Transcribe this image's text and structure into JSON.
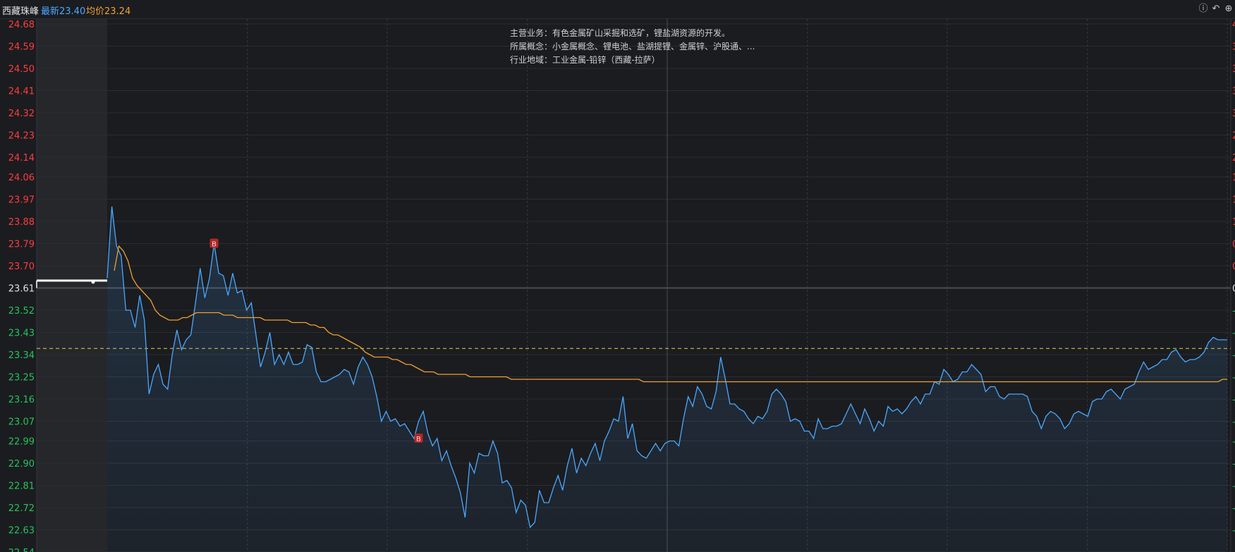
{
  "header": {
    "stock_name": "西藏珠峰",
    "latest_label": "最新23.40",
    "avg_label": "均价23.24",
    "icons": [
      "info-circle-icon",
      "undo-icon",
      "add-icon"
    ]
  },
  "info_panel": {
    "main_business": "主营业务：有色金属矿山采掘和选矿，锂盐湖资源的开发。",
    "concepts": "所属概念：小金属概念、锂电池、盐湖提锂、金属锌、沪股通、...",
    "industry": "行业地域：工业金属-铅锌（西藏-拉萨）"
  },
  "chart_data": {
    "type": "line",
    "title": "",
    "y_ticks_upper": [
      "24.68",
      "24.59",
      "24.50",
      "24.41",
      "24.32",
      "24.23",
      "24.14",
      "24.06",
      "23.97",
      "23.88",
      "23.79",
      "23.70"
    ],
    "y_tick_mid": "23.61",
    "y_ticks_lower": [
      "23.52",
      "23.43",
      "23.34",
      "23.25",
      "23.16",
      "23.07",
      "22.99",
      "22.90",
      "22.81",
      "22.72",
      "22.63",
      "22.54"
    ],
    "ylim": [
      22.54,
      24.68
    ],
    "prev_close": 23.61,
    "reference_line": 23.365,
    "colors": {
      "up": "#ff3c3c",
      "down": "#24c45c",
      "flat": "#e0e0e0",
      "price": "#4aa8ff",
      "avg": "#f0a030",
      "ref": "#e6d23c",
      "marker": "#b02828"
    },
    "pre_market": [
      23.64,
      23.64,
      23.64,
      23.64,
      23.64,
      23.64,
      23.64,
      23.64,
      23.64,
      23.64
    ],
    "price": [
      23.65,
      23.94,
      23.78,
      23.74,
      23.52,
      23.52,
      23.45,
      23.58,
      23.48,
      23.18,
      23.26,
      23.3,
      23.22,
      23.2,
      23.34,
      23.44,
      23.36,
      23.4,
      23.42,
      23.55,
      23.69,
      23.57,
      23.65,
      23.79,
      23.67,
      23.66,
      23.58,
      23.67,
      23.59,
      23.6,
      23.52,
      23.55,
      23.42,
      23.29,
      23.35,
      23.43,
      23.3,
      23.34,
      23.3,
      23.35,
      23.3,
      23.3,
      23.31,
      23.38,
      23.37,
      23.27,
      23.23,
      23.23,
      23.24,
      23.25,
      23.26,
      23.28,
      23.27,
      23.22,
      23.29,
      23.33,
      23.3,
      23.25,
      23.17,
      23.07,
      23.11,
      23.07,
      23.08,
      23.05,
      23.06,
      23.03,
      23.0,
      23.07,
      23.11,
      23.02,
      22.97,
      23.0,
      22.91,
      22.95,
      22.89,
      22.84,
      22.78,
      22.68,
      22.9,
      22.86,
      22.94,
      22.93,
      22.93,
      22.99,
      22.94,
      22.82,
      22.83,
      22.8,
      22.7,
      22.75,
      22.73,
      22.64,
      22.66,
      22.79,
      22.74,
      22.74,
      22.8,
      22.85,
      22.79,
      22.89,
      22.96,
      22.86,
      22.92,
      22.89,
      22.94,
      22.98,
      22.91,
      22.99,
      23.03,
      23.08,
      23.07,
      23.17,
      23.0,
      23.06,
      22.95,
      22.93,
      22.92,
      22.95,
      22.98,
      22.95,
      22.98,
      22.99,
      22.99,
      22.97,
      23.08,
      23.17,
      23.13,
      23.21,
      23.18,
      23.13,
      23.12,
      23.19,
      23.33,
      23.24,
      23.14,
      23.14,
      23.12,
      23.11,
      23.08,
      23.06,
      23.09,
      23.08,
      23.11,
      23.18,
      23.2,
      23.18,
      23.15,
      23.07,
      23.08,
      23.07,
      23.03,
      23.03,
      23.0,
      23.08,
      23.04,
      23.04,
      23.05,
      23.05,
      23.06,
      23.1,
      23.14,
      23.1,
      23.06,
      23.12,
      23.08,
      23.03,
      23.07,
      23.05,
      23.13,
      23.11,
      23.12,
      23.1,
      23.12,
      23.15,
      23.17,
      23.14,
      23.18,
      23.18,
      23.23,
      23.22,
      23.28,
      23.26,
      23.23,
      23.24,
      23.27,
      23.27,
      23.3,
      23.28,
      23.26,
      23.19,
      23.21,
      23.21,
      23.17,
      23.16,
      23.18,
      23.18,
      23.18,
      23.18,
      23.17,
      23.11,
      23.09,
      23.04,
      23.09,
      23.11,
      23.1,
      23.08,
      23.04,
      23.06,
      23.1,
      23.11,
      23.1,
      23.09,
      23.15,
      23.16,
      23.16,
      23.19,
      23.2,
      23.18,
      23.16,
      23.2,
      23.21,
      23.22,
      23.27,
      23.31,
      23.28,
      23.29,
      23.3,
      23.32,
      23.32,
      23.35,
      23.36,
      23.33,
      23.31,
      23.32,
      23.32,
      23.33,
      23.35,
      23.39,
      23.41,
      23.4,
      23.4,
      23.4
    ],
    "avg": [
      23.68,
      23.78,
      23.76,
      23.72,
      23.65,
      23.62,
      23.6,
      23.58,
      23.56,
      23.52,
      23.5,
      23.49,
      23.48,
      23.48,
      23.48,
      23.49,
      23.49,
      23.5,
      23.51,
      23.51,
      23.51,
      23.51,
      23.51,
      23.51,
      23.5,
      23.5,
      23.5,
      23.49,
      23.49,
      23.49,
      23.49,
      23.49,
      23.49,
      23.48,
      23.48,
      23.48,
      23.48,
      23.48,
      23.48,
      23.47,
      23.47,
      23.47,
      23.47,
      23.46,
      23.46,
      23.45,
      23.45,
      23.43,
      23.42,
      23.42,
      23.41,
      23.4,
      23.39,
      23.38,
      23.37,
      23.35,
      23.34,
      23.33,
      23.33,
      23.33,
      23.33,
      23.32,
      23.32,
      23.31,
      23.3,
      23.3,
      23.29,
      23.28,
      23.27,
      23.27,
      23.27,
      23.26,
      23.26,
      23.26,
      23.26,
      23.26,
      23.26,
      23.26,
      23.25,
      23.25,
      23.25,
      23.25,
      23.25,
      23.25,
      23.25,
      23.25,
      23.25,
      23.24,
      23.24,
      23.24,
      23.24,
      23.24,
      23.24,
      23.24,
      23.24,
      23.24,
      23.24,
      23.24,
      23.24,
      23.24,
      23.24,
      23.24,
      23.24,
      23.24,
      23.24,
      23.24,
      23.24,
      23.24,
      23.24,
      23.24,
      23.24,
      23.24,
      23.24,
      23.24,
      23.24,
      23.24,
      23.23,
      23.23,
      23.23,
      23.23,
      23.23,
      23.23,
      23.23,
      23.23,
      23.23,
      23.23,
      23.23,
      23.23,
      23.23,
      23.23,
      23.23,
      23.23,
      23.23,
      23.23,
      23.23,
      23.23,
      23.23,
      23.23,
      23.23,
      23.23,
      23.23,
      23.23,
      23.23,
      23.23,
      23.23,
      23.23,
      23.23,
      23.23,
      23.23,
      23.23,
      23.23,
      23.23,
      23.23,
      23.23,
      23.23,
      23.23,
      23.23,
      23.23,
      23.23,
      23.23,
      23.23,
      23.23,
      23.23,
      23.23,
      23.23,
      23.23,
      23.23,
      23.23,
      23.23,
      23.23,
      23.23,
      23.23,
      23.23,
      23.23,
      23.23,
      23.23,
      23.23,
      23.23,
      23.23,
      23.23,
      23.23,
      23.23,
      23.23,
      23.23,
      23.23,
      23.23,
      23.23,
      23.23,
      23.23,
      23.23,
      23.23,
      23.23,
      23.23,
      23.23,
      23.23,
      23.23,
      23.23,
      23.23,
      23.23,
      23.23,
      23.23,
      23.23,
      23.23,
      23.23,
      23.23,
      23.23,
      23.23,
      23.23,
      23.23,
      23.23,
      23.23,
      23.23,
      23.23,
      23.23,
      23.23,
      23.23,
      23.23,
      23.23,
      23.23,
      23.23,
      23.23,
      23.23,
      23.23,
      23.23,
      23.23,
      23.23,
      23.23,
      23.23,
      23.23,
      23.23,
      23.23,
      23.23,
      23.23,
      23.23,
      23.23,
      23.23,
      23.23,
      23.23,
      23.23,
      23.23,
      23.23,
      23.23,
      23.23,
      23.24,
      23.24
    ],
    "markers": [
      {
        "label": "B",
        "value": 23.79
      },
      {
        "label": "B",
        "value": 23.0
      }
    ],
    "right_labels_upper": [
      "4",
      "3",
      "3",
      "3",
      "3",
      "2",
      "2",
      "1",
      "1",
      "1",
      "0",
      "0"
    ],
    "right_label_mid": "0",
    "right_labels_lower": [
      "-",
      "-",
      "-",
      "-",
      "-",
      "-",
      "-",
      "-",
      "-",
      "-",
      "-",
      "-"
    ]
  }
}
